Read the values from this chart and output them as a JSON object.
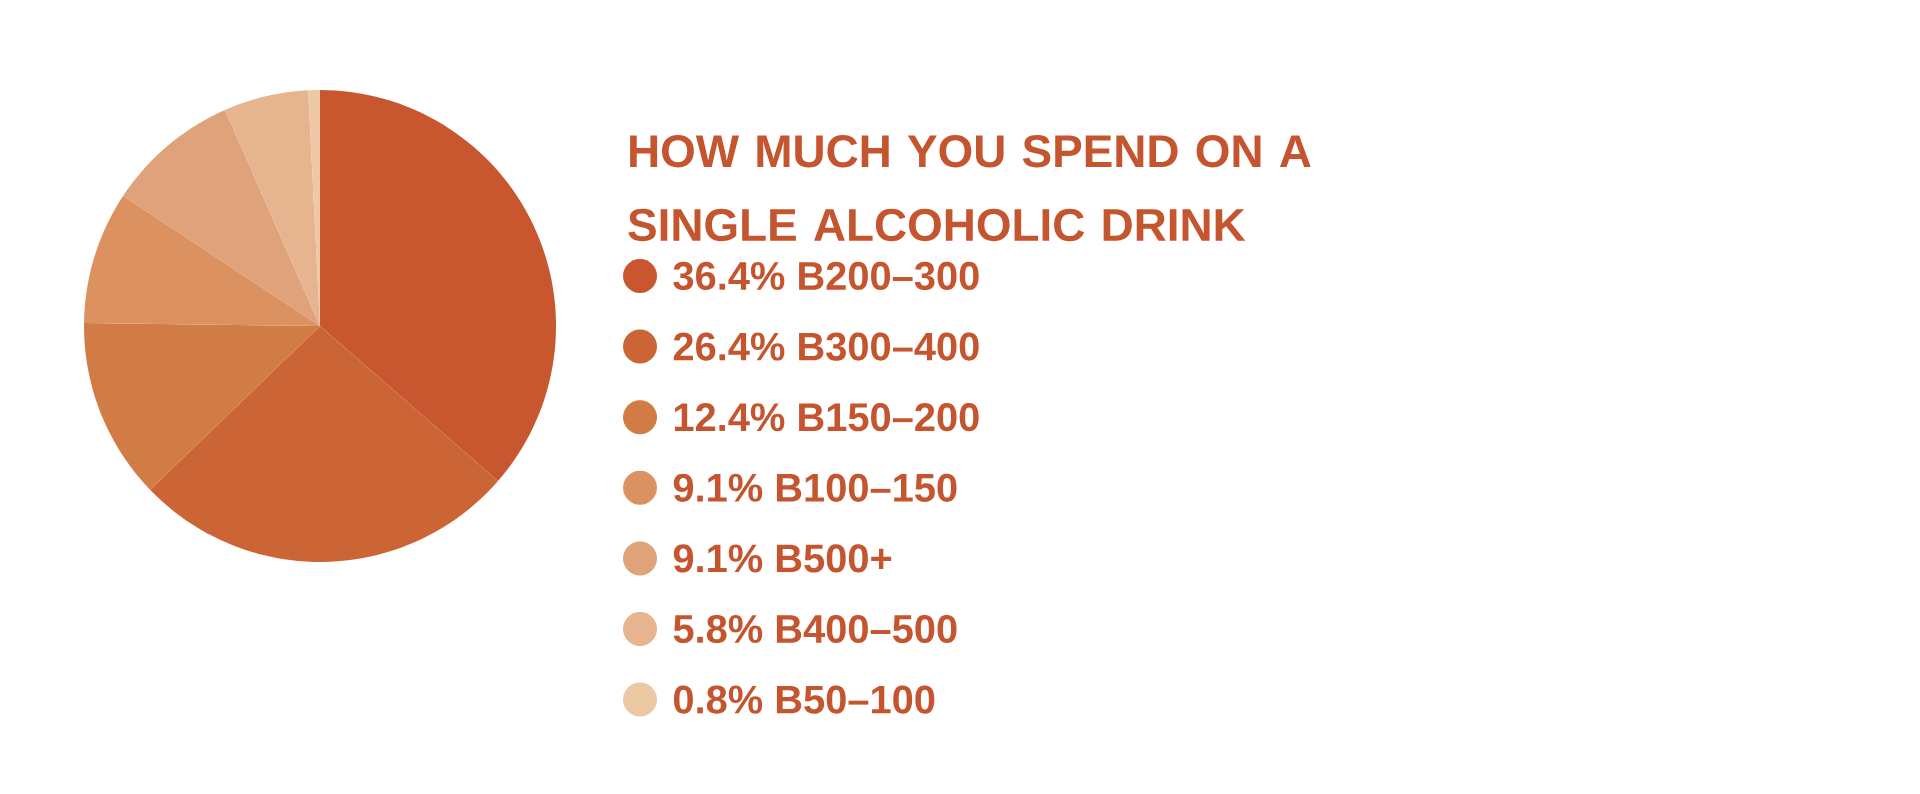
{
  "chart_data": {
    "type": "pie",
    "title": "HOW MUCH YOU SPEND ON A SINGLE ALCOHOLIC DRINK",
    "categories": [
      "36.4% B200–300",
      "26.4% B300–400",
      "12.4% B150–200",
      "9.1% B100–150",
      "9.1% B500+",
      "5.8% B400–500",
      "0.8% B50–100"
    ],
    "values": [
      36.4,
      26.4,
      12.4,
      9.1,
      9.1,
      5.8,
      0.8
    ],
    "colors": [
      "#c8572f",
      "#cc6535",
      "#d27c45",
      "#dc9260",
      "#e0a27a",
      "#e6b48e",
      "#ecc9a4"
    ],
    "legend": "right"
  }
}
